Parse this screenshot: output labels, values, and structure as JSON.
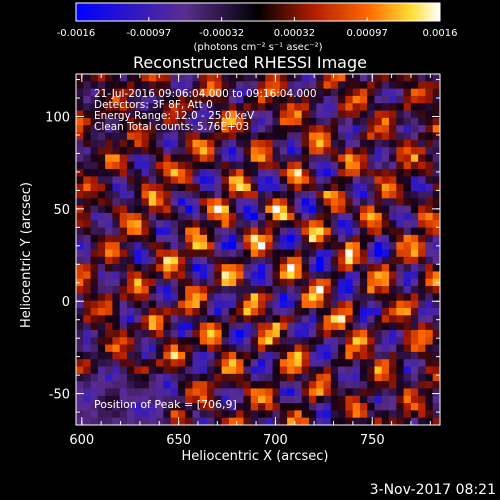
{
  "chart_data": {
    "type": "heatmap",
    "title": "Reconstructed RHESSI Image",
    "xlabel": "Heliocentric X (arcsec)",
    "ylabel": "Heliocentric Y (arcsec)",
    "xlim": [
      597,
      785
    ],
    "ylim": [
      -67,
      123
    ],
    "x_ticks": [
      600,
      650,
      700,
      750
    ],
    "y_ticks": [
      -50,
      0,
      50,
      100
    ],
    "colorbar": {
      "range": [
        -0.0016,
        0.0016
      ],
      "ticks": [
        "-0.0016",
        "-0.00097",
        "-0.00032",
        "0.00032",
        "0.00097",
        "0.0016"
      ],
      "label": "(photons cm⁻² s⁻¹ asec⁻²)",
      "colors": [
        "#0000ff",
        "#5a2d8f",
        "#000000",
        "#b01c00",
        "#ff6600",
        "#ffdd33",
        "#ffffff"
      ]
    },
    "annotations": [
      "21-Jul-2016 09:06:04.000 to 09:16:04.000",
      "Detectors: 3F 8F, Att 0",
      "Energy Range: 12.0 - 25.0 keV",
      "Clean     Total counts: 5.76E+03"
    ],
    "peak_label": "Position of Peak = [706,9]",
    "peak": [
      706,
      9
    ]
  },
  "footer": {
    "date": "3-Nov-2017 08:21"
  }
}
